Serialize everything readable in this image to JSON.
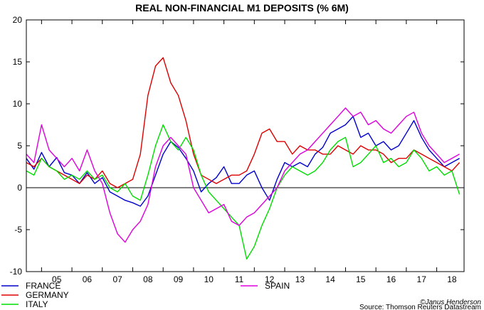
{
  "chart_data": {
    "type": "line",
    "title": "REAL NON-FINANCIAL M1 DEPOSITS (% 6M)",
    "xlabel": "",
    "ylabel": "",
    "ylim": [
      -10,
      20
    ],
    "yticks": [
      -10,
      -5,
      0,
      5,
      10,
      15,
      20
    ],
    "xlim": [
      2004.5,
      2018.9
    ],
    "year_labels": [
      "05",
      "06",
      "07",
      "08",
      "09",
      "10",
      "11",
      "12",
      "13",
      "14",
      "15",
      "16",
      "17",
      "18"
    ],
    "zero_line": true,
    "grid": false,
    "legend_position": "bottom",
    "series": [
      {
        "name": "FRANCE",
        "color": "#0000cc",
        "points": [
          [
            2004.5,
            3.5
          ],
          [
            2004.75,
            2.2
          ],
          [
            2005.0,
            4.2
          ],
          [
            2005.25,
            2.5
          ],
          [
            2005.5,
            3.6
          ],
          [
            2005.75,
            1.8
          ],
          [
            2006.0,
            1.5
          ],
          [
            2006.25,
            0.5
          ],
          [
            2006.5,
            1.8
          ],
          [
            2006.75,
            0.5
          ],
          [
            2007.0,
            1.2
          ],
          [
            2007.25,
            -0.5
          ],
          [
            2007.5,
            -1.0
          ],
          [
            2007.75,
            -1.5
          ],
          [
            2008.0,
            -1.8
          ],
          [
            2008.25,
            -2.2
          ],
          [
            2008.5,
            -1.0
          ],
          [
            2008.75,
            1.5
          ],
          [
            2009.0,
            4.0
          ],
          [
            2009.25,
            5.5
          ],
          [
            2009.5,
            4.8
          ],
          [
            2009.75,
            3.5
          ],
          [
            2010.0,
            2.0
          ],
          [
            2010.25,
            -0.5
          ],
          [
            2010.5,
            0.5
          ],
          [
            2010.75,
            1.2
          ],
          [
            2011.0,
            2.5
          ],
          [
            2011.25,
            0.5
          ],
          [
            2011.5,
            0.5
          ],
          [
            2011.75,
            1.5
          ],
          [
            2012.0,
            2.0
          ],
          [
            2012.25,
            0.0
          ],
          [
            2012.5,
            -1.5
          ],
          [
            2012.75,
            1.0
          ],
          [
            2013.0,
            3.0
          ],
          [
            2013.25,
            2.5
          ],
          [
            2013.5,
            3.0
          ],
          [
            2013.75,
            2.5
          ],
          [
            2014.0,
            4.0
          ],
          [
            2014.25,
            4.8
          ],
          [
            2014.5,
            6.5
          ],
          [
            2014.75,
            7.0
          ],
          [
            2015.0,
            7.5
          ],
          [
            2015.25,
            8.5
          ],
          [
            2015.5,
            6.0
          ],
          [
            2015.75,
            6.5
          ],
          [
            2016.0,
            5.0
          ],
          [
            2016.25,
            5.5
          ],
          [
            2016.5,
            4.5
          ],
          [
            2016.75,
            5.0
          ],
          [
            2017.0,
            6.5
          ],
          [
            2017.25,
            8.0
          ],
          [
            2017.5,
            6.0
          ],
          [
            2017.75,
            4.5
          ],
          [
            2018.0,
            3.5
          ],
          [
            2018.25,
            2.5
          ],
          [
            2018.5,
            3.0
          ],
          [
            2018.75,
            3.5
          ]
        ]
      },
      {
        "name": "GERMANY",
        "color": "#dd0000",
        "points": [
          [
            2004.5,
            3.0
          ],
          [
            2004.75,
            2.5
          ],
          [
            2005.0,
            3.5
          ],
          [
            2005.25,
            2.5
          ],
          [
            2005.5,
            2.0
          ],
          [
            2005.75,
            1.5
          ],
          [
            2006.0,
            1.0
          ],
          [
            2006.25,
            0.5
          ],
          [
            2006.5,
            1.5
          ],
          [
            2006.75,
            1.0
          ],
          [
            2007.0,
            2.0
          ],
          [
            2007.25,
            0.5
          ],
          [
            2007.5,
            0.0
          ],
          [
            2007.75,
            0.5
          ],
          [
            2008.0,
            1.0
          ],
          [
            2008.25,
            4.0
          ],
          [
            2008.5,
            11.0
          ],
          [
            2008.75,
            14.5
          ],
          [
            2009.0,
            15.5
          ],
          [
            2009.25,
            12.5
          ],
          [
            2009.5,
            11.0
          ],
          [
            2009.75,
            8.0
          ],
          [
            2010.0,
            4.0
          ],
          [
            2010.25,
            1.5
          ],
          [
            2010.5,
            1.0
          ],
          [
            2010.75,
            0.5
          ],
          [
            2011.0,
            1.0
          ],
          [
            2011.25,
            1.5
          ],
          [
            2011.5,
            1.5
          ],
          [
            2011.75,
            2.0
          ],
          [
            2012.0,
            4.0
          ],
          [
            2012.25,
            6.5
          ],
          [
            2012.5,
            7.0
          ],
          [
            2012.75,
            5.5
          ],
          [
            2013.0,
            5.5
          ],
          [
            2013.25,
            4.0
          ],
          [
            2013.5,
            5.0
          ],
          [
            2013.75,
            4.5
          ],
          [
            2014.0,
            4.5
          ],
          [
            2014.25,
            4.0
          ],
          [
            2014.5,
            4.0
          ],
          [
            2014.75,
            5.0
          ],
          [
            2015.0,
            4.5
          ],
          [
            2015.25,
            4.0
          ],
          [
            2015.5,
            5.0
          ],
          [
            2015.75,
            4.5
          ],
          [
            2016.0,
            4.5
          ],
          [
            2016.25,
            4.0
          ],
          [
            2016.5,
            3.0
          ],
          [
            2016.75,
            3.5
          ],
          [
            2017.0,
            3.5
          ],
          [
            2017.25,
            4.5
          ],
          [
            2017.5,
            4.0
          ],
          [
            2017.75,
            3.5
          ],
          [
            2018.0,
            3.0
          ],
          [
            2018.25,
            2.5
          ],
          [
            2018.5,
            2.0
          ],
          [
            2018.75,
            3.0
          ]
        ]
      },
      {
        "name": "ITALY",
        "color": "#00dd00",
        "points": [
          [
            2004.5,
            2.0
          ],
          [
            2004.75,
            1.5
          ],
          [
            2005.0,
            3.5
          ],
          [
            2005.25,
            2.5
          ],
          [
            2005.5,
            2.0
          ],
          [
            2005.75,
            1.0
          ],
          [
            2006.0,
            1.5
          ],
          [
            2006.25,
            1.0
          ],
          [
            2006.5,
            2.0
          ],
          [
            2006.75,
            1.0
          ],
          [
            2007.0,
            1.5
          ],
          [
            2007.25,
            0.0
          ],
          [
            2007.5,
            -0.5
          ],
          [
            2007.75,
            0.5
          ],
          [
            2008.0,
            -1.0
          ],
          [
            2008.25,
            -1.5
          ],
          [
            2008.5,
            1.5
          ],
          [
            2008.75,
            5.0
          ],
          [
            2009.0,
            7.5
          ],
          [
            2009.25,
            5.5
          ],
          [
            2009.5,
            4.5
          ],
          [
            2009.75,
            6.0
          ],
          [
            2010.0,
            4.5
          ],
          [
            2010.25,
            1.5
          ],
          [
            2010.5,
            -0.5
          ],
          [
            2010.75,
            -1.5
          ],
          [
            2011.0,
            -2.5
          ],
          [
            2011.25,
            -3.5
          ],
          [
            2011.5,
            -4.5
          ],
          [
            2011.75,
            -8.5
          ],
          [
            2012.0,
            -7.0
          ],
          [
            2012.25,
            -4.5
          ],
          [
            2012.5,
            -2.5
          ],
          [
            2012.75,
            0.0
          ],
          [
            2013.0,
            1.5
          ],
          [
            2013.25,
            2.5
          ],
          [
            2013.5,
            2.0
          ],
          [
            2013.75,
            1.5
          ],
          [
            2014.0,
            2.0
          ],
          [
            2014.25,
            3.0
          ],
          [
            2014.5,
            4.5
          ],
          [
            2014.75,
            5.5
          ],
          [
            2015.0,
            6.0
          ],
          [
            2015.25,
            2.5
          ],
          [
            2015.5,
            3.0
          ],
          [
            2015.75,
            4.0
          ],
          [
            2016.0,
            5.0
          ],
          [
            2016.25,
            3.0
          ],
          [
            2016.5,
            3.5
          ],
          [
            2016.75,
            2.5
          ],
          [
            2017.0,
            3.0
          ],
          [
            2017.25,
            4.5
          ],
          [
            2017.5,
            3.5
          ],
          [
            2017.75,
            2.0
          ],
          [
            2018.0,
            2.5
          ],
          [
            2018.25,
            1.5
          ],
          [
            2018.5,
            2.0
          ],
          [
            2018.75,
            -0.8
          ]
        ]
      },
      {
        "name": "SPAIN",
        "color": "#dd00dd",
        "points": [
          [
            2004.5,
            4.0
          ],
          [
            2004.75,
            3.0
          ],
          [
            2005.0,
            7.5
          ],
          [
            2005.25,
            4.5
          ],
          [
            2005.5,
            3.5
          ],
          [
            2005.75,
            2.5
          ],
          [
            2006.0,
            3.5
          ],
          [
            2006.25,
            2.0
          ],
          [
            2006.5,
            4.5
          ],
          [
            2006.75,
            2.0
          ],
          [
            2007.0,
            0.5
          ],
          [
            2007.25,
            -3.0
          ],
          [
            2007.5,
            -5.5
          ],
          [
            2007.75,
            -6.5
          ],
          [
            2008.0,
            -5.0
          ],
          [
            2008.25,
            -4.0
          ],
          [
            2008.5,
            -2.0
          ],
          [
            2008.75,
            2.5
          ],
          [
            2009.0,
            5.0
          ],
          [
            2009.25,
            6.0
          ],
          [
            2009.5,
            5.0
          ],
          [
            2009.75,
            4.0
          ],
          [
            2010.0,
            0.0
          ],
          [
            2010.25,
            -1.5
          ],
          [
            2010.5,
            -3.0
          ],
          [
            2010.75,
            -2.5
          ],
          [
            2011.0,
            -2.0
          ],
          [
            2011.25,
            -4.0
          ],
          [
            2011.5,
            -4.5
          ],
          [
            2011.75,
            -3.5
          ],
          [
            2012.0,
            -3.0
          ],
          [
            2012.25,
            -2.0
          ],
          [
            2012.5,
            -1.0
          ],
          [
            2012.75,
            0.0
          ],
          [
            2013.0,
            2.0
          ],
          [
            2013.25,
            3.0
          ],
          [
            2013.5,
            4.0
          ],
          [
            2013.75,
            4.5
          ],
          [
            2014.0,
            5.5
          ],
          [
            2014.25,
            6.5
          ],
          [
            2014.5,
            7.5
          ],
          [
            2014.75,
            8.5
          ],
          [
            2015.0,
            9.5
          ],
          [
            2015.25,
            8.5
          ],
          [
            2015.5,
            9.0
          ],
          [
            2015.75,
            7.5
          ],
          [
            2016.0,
            8.0
          ],
          [
            2016.25,
            7.0
          ],
          [
            2016.5,
            6.5
          ],
          [
            2016.75,
            7.5
          ],
          [
            2017.0,
            8.5
          ],
          [
            2017.25,
            9.0
          ],
          [
            2017.5,
            6.5
          ],
          [
            2017.75,
            5.0
          ],
          [
            2018.0,
            4.0
          ],
          [
            2018.25,
            3.0
          ],
          [
            2018.5,
            3.5
          ],
          [
            2018.75,
            4.0
          ]
        ]
      }
    ],
    "source": "Source: Thomson Reuters Datastream",
    "credit": "©Janus Henderson"
  }
}
